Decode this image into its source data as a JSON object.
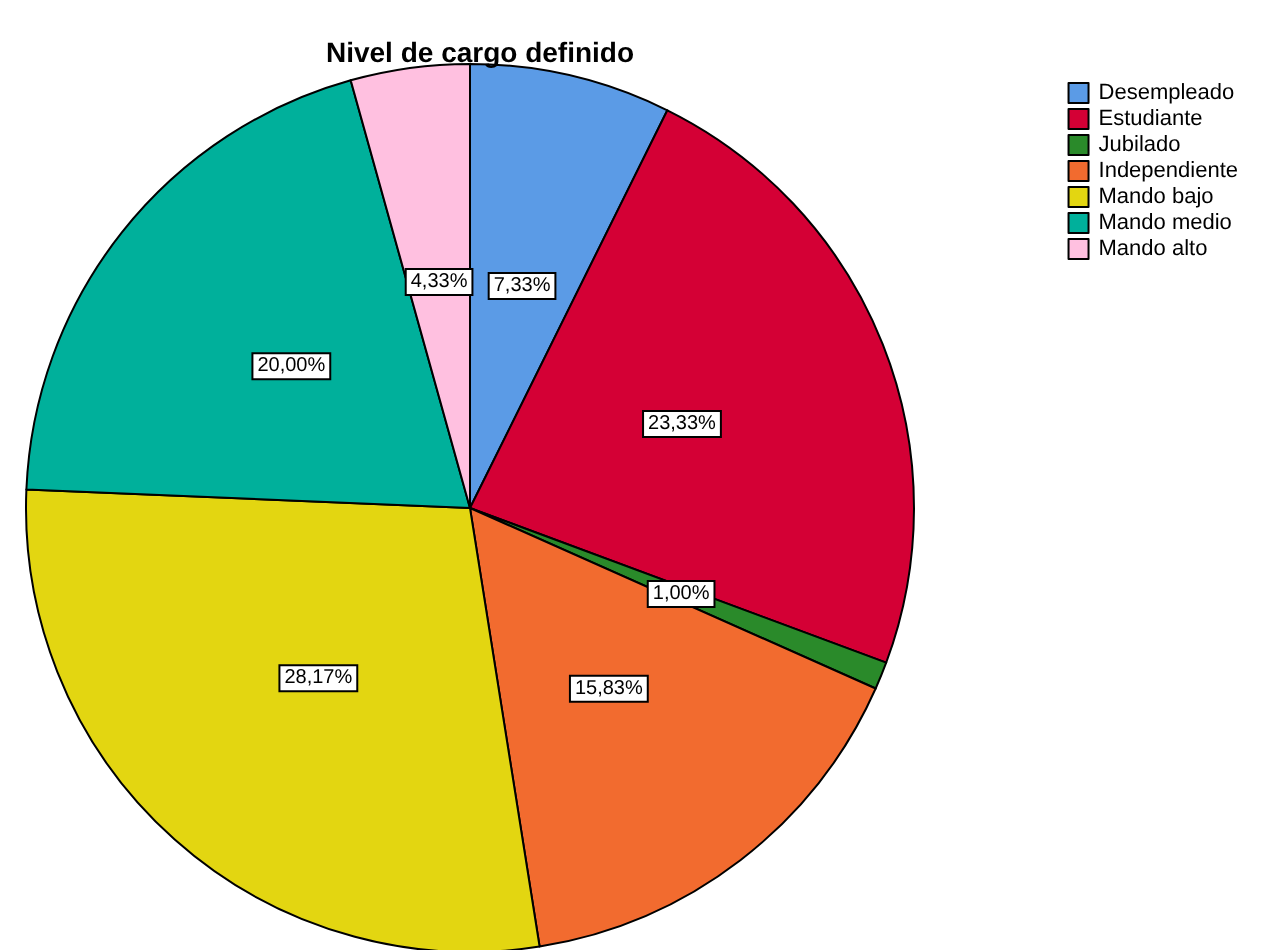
{
  "chart_data": {
    "type": "pie",
    "title": "Nivel de cargo definido",
    "categories": [
      "Desempleado",
      "Estudiante",
      "Jubilado",
      "Independiente",
      "Mando bajo",
      "Mando medio",
      "Mando alto"
    ],
    "values": [
      7.33,
      23.33,
      1.0,
      15.83,
      28.17,
      20.0,
      4.33
    ],
    "value_labels": [
      "7,33%",
      "23,33%",
      "1,00%",
      "15,83%",
      "28,17%",
      "20,00%",
      "4,33%"
    ],
    "colors": [
      "#5b9be6",
      "#d40035",
      "#2a8a2a",
      "#f26b2f",
      "#e3d611",
      "#00b09b",
      "#ffc0e0"
    ],
    "legend": "top right"
  }
}
